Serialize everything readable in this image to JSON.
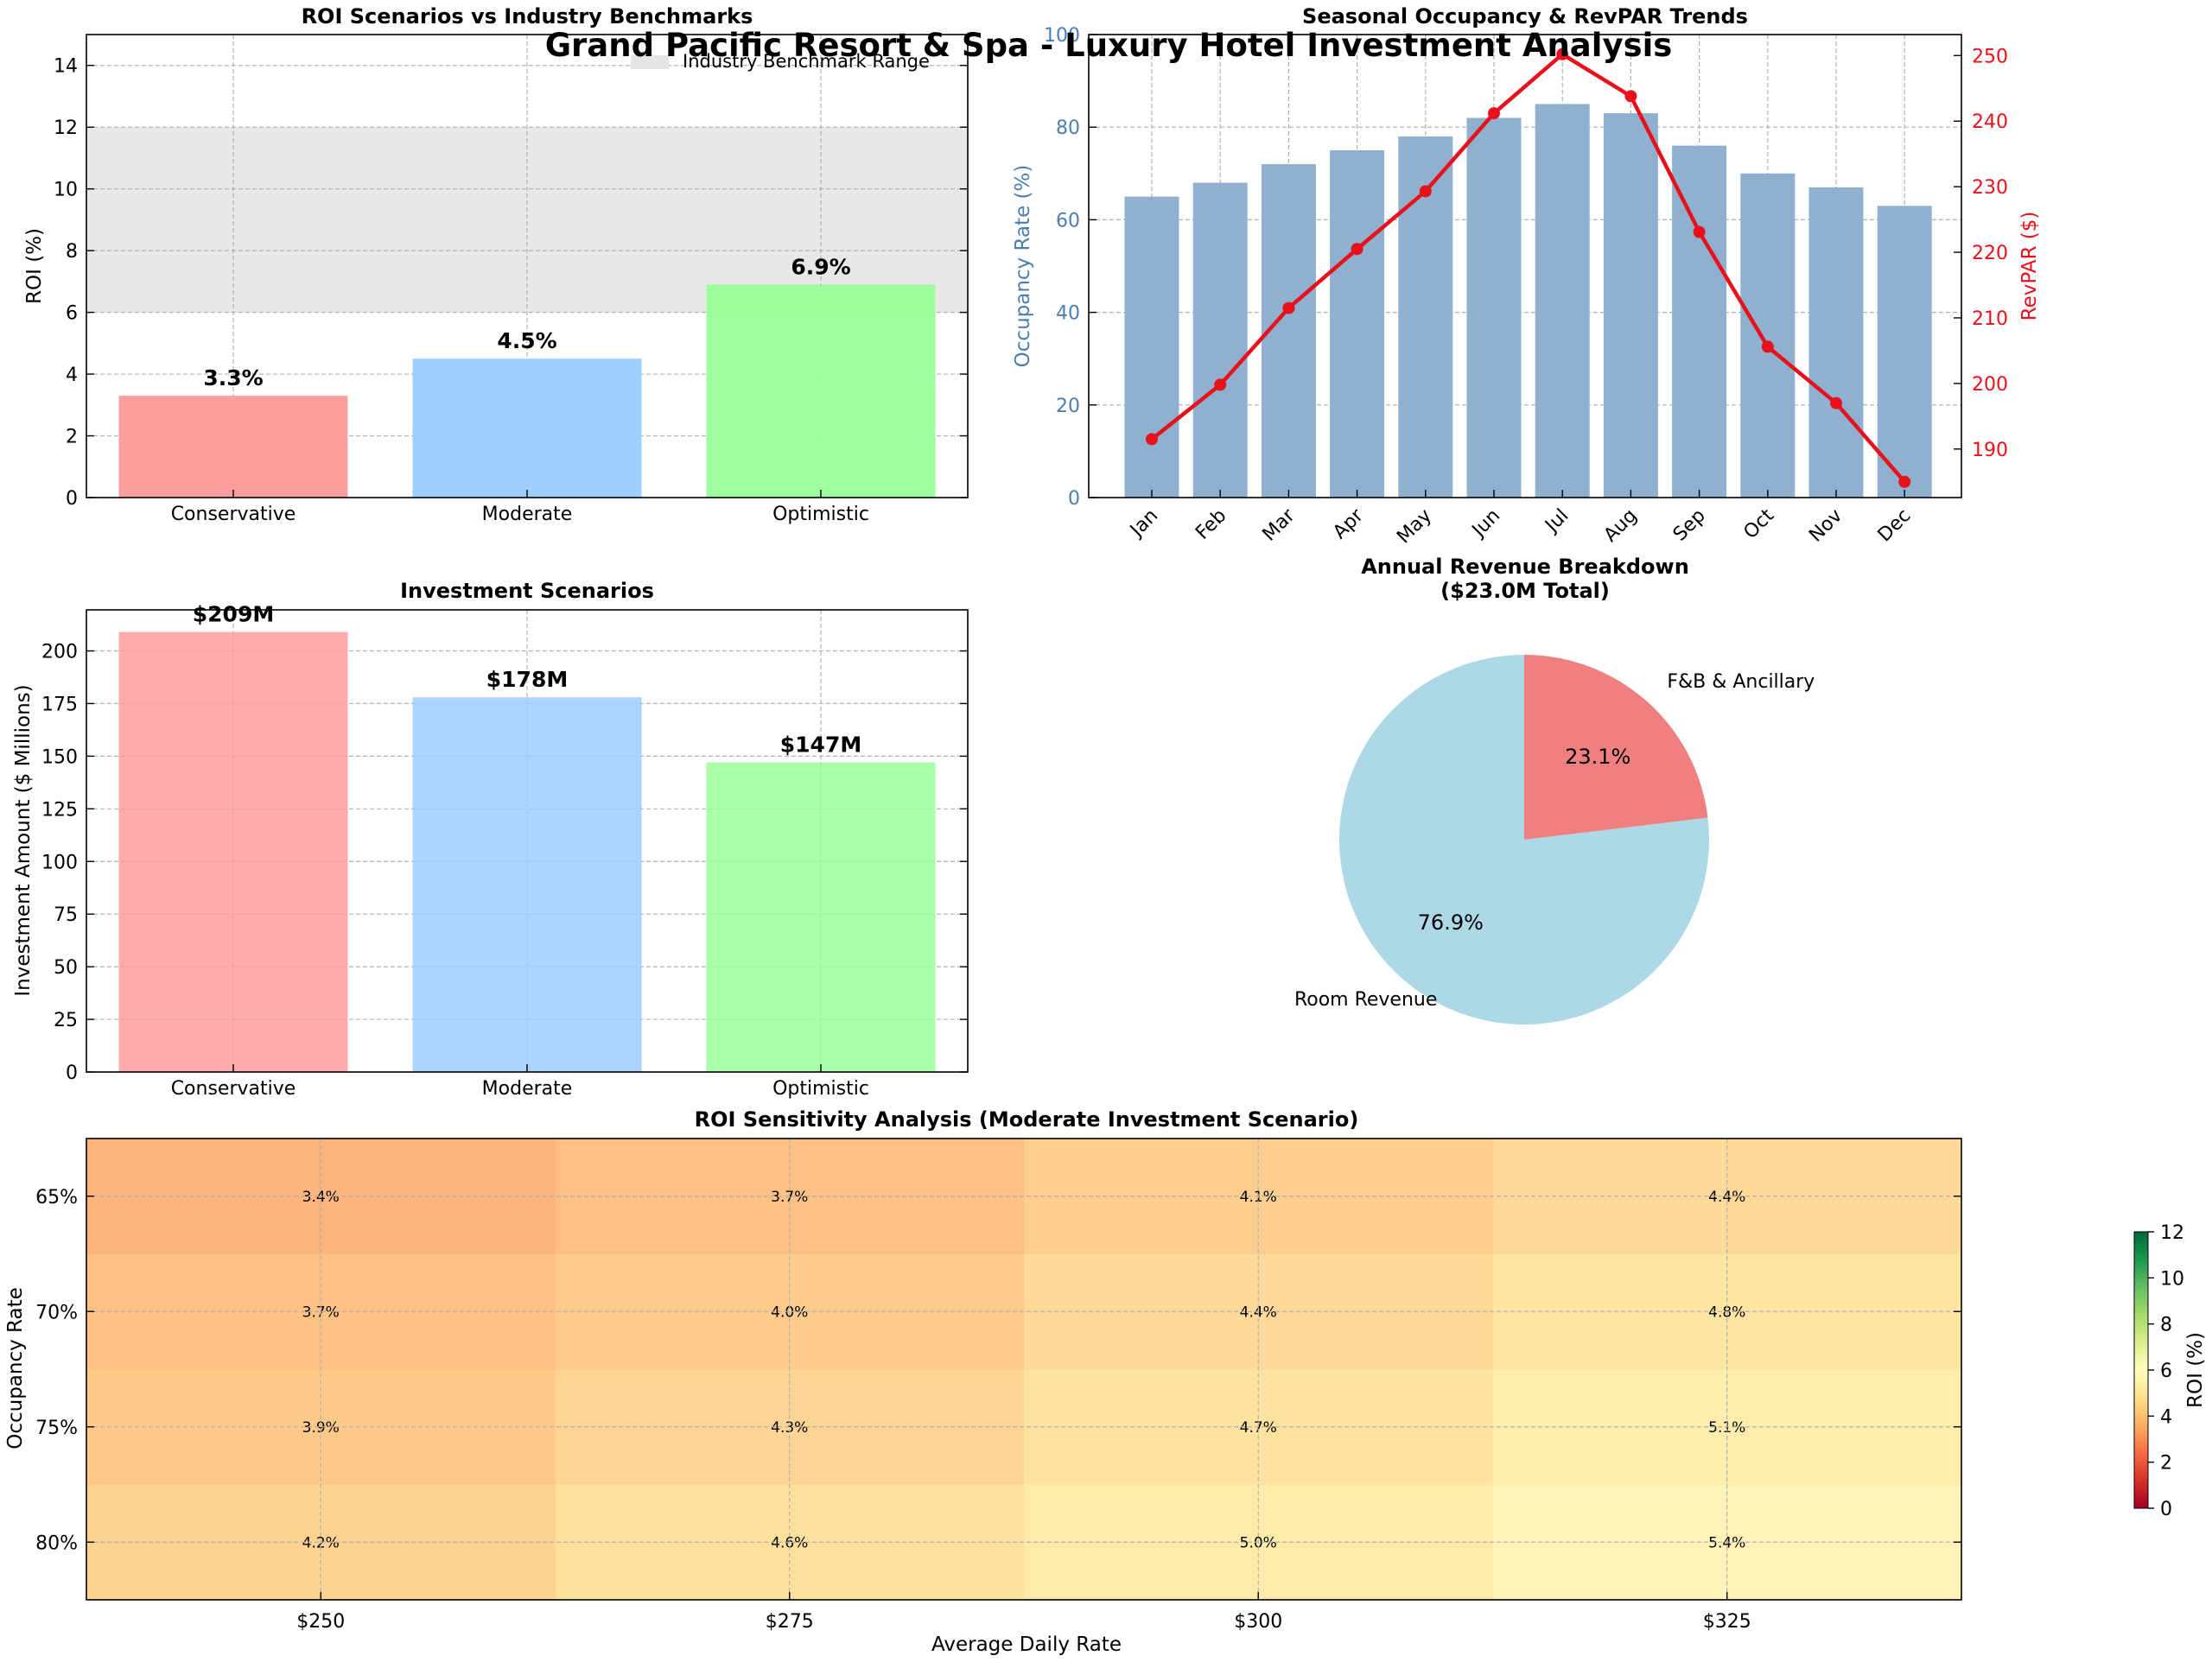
{
  "figure_title": "Grand Pacific Resort & Spa - Luxury Hotel Investment Analysis",
  "colors": {
    "conservative": "#ff9999",
    "moderate": "#99ccff",
    "optimistic": "#99ff99",
    "benchmark_band": "#e5e5e5",
    "occupancy_bar": "#8fb0cf",
    "occupancy_axis": "#4a7fb0",
    "revpar_line": "#e8111b",
    "pie_room": "#add8e6",
    "pie_fnb": "#f08080"
  },
  "chart_data": [
    {
      "id": "roi",
      "type": "bar",
      "title": "ROI Scenarios vs Industry Benchmarks",
      "xlabel": "",
      "ylabel": "ROI (%)",
      "categories": [
        "Conservative",
        "Moderate",
        "Optimistic"
      ],
      "values": [
        3.3,
        4.5,
        6.9
      ],
      "value_labels": [
        "3.3%",
        "4.5%",
        "6.9%"
      ],
      "ylim": [
        0,
        15
      ],
      "yticks": [
        "0",
        "2",
        "4",
        "6",
        "8",
        "10",
        "12",
        "14"
      ],
      "ytick_values": [
        0,
        2,
        4,
        6,
        8,
        10,
        12,
        14
      ],
      "benchmark_range": [
        6,
        12
      ],
      "legend": [
        "Industry Benchmark Range"
      ],
      "legend_position": "top-right",
      "grid": true
    },
    {
      "id": "seasonal",
      "type": "bar+line",
      "title": "Seasonal Occupancy & RevPAR Trends",
      "ylabel": "Occupancy Rate (%)",
      "y2label": "RevPAR ($)",
      "categories": [
        "Jan",
        "Feb",
        "Mar",
        "Apr",
        "May",
        "Jun",
        "Jul",
        "Aug",
        "Sep",
        "Oct",
        "Nov",
        "Dec"
      ],
      "series": [
        {
          "name": "Occupancy Rate (%)",
          "type": "bar",
          "values": [
            65,
            68,
            72,
            75,
            78,
            82,
            85,
            83,
            76,
            70,
            67,
            63
          ]
        },
        {
          "name": "RevPAR ($)",
          "type": "line",
          "values": [
            191.5,
            199.8,
            211.5,
            220.5,
            229.3,
            241.2,
            250.2,
            243.8,
            223.1,
            205.6,
            197.0,
            185.0
          ]
        }
      ],
      "ylim": [
        0,
        100
      ],
      "yticks": [
        "0",
        "20",
        "40",
        "60",
        "80",
        "100"
      ],
      "ytick_values": [
        0,
        20,
        40,
        60,
        80,
        100
      ],
      "y2lim": [
        182.6,
        253.2
      ],
      "y2ticks": [
        "190",
        "200",
        "210",
        "220",
        "230",
        "240",
        "250"
      ],
      "y2tick_values": [
        190,
        200,
        210,
        220,
        230,
        240,
        250
      ],
      "grid": true
    },
    {
      "id": "investment",
      "type": "bar",
      "title": "Investment Scenarios",
      "ylabel": "Investment Amount ($ Millions)",
      "categories": [
        "Conservative",
        "Moderate",
        "Optimistic"
      ],
      "values": [
        209,
        178,
        147
      ],
      "value_labels": [
        "$209M",
        "$178M",
        "$147M"
      ],
      "ylim": [
        0,
        219.5
      ],
      "yticks": [
        "0",
        "25",
        "50",
        "75",
        "100",
        "125",
        "150",
        "175",
        "200"
      ],
      "ytick_values": [
        0,
        25,
        50,
        75,
        100,
        125,
        150,
        175,
        200
      ],
      "grid": true
    },
    {
      "id": "revenue",
      "type": "pie",
      "title_line1": "Annual Revenue Breakdown",
      "title_line2": "($23.0M Total)",
      "labels": [
        "Room Revenue",
        "F&B & Ancillary"
      ],
      "values": [
        76.9,
        23.1
      ],
      "pct_labels": [
        "76.9%",
        "23.1%"
      ]
    },
    {
      "id": "sensitivity",
      "type": "heatmap",
      "title": "ROI Sensitivity Analysis (Moderate Investment Scenario)",
      "xlabel": "Average Daily Rate",
      "ylabel": "Occupancy Rate",
      "x": [
        "$250",
        "$275",
        "$300",
        "$325"
      ],
      "y": [
        "65%",
        "70%",
        "75%",
        "80%"
      ],
      "values": [
        [
          3.4,
          3.7,
          4.1,
          4.4
        ],
        [
          3.7,
          4.0,
          4.4,
          4.8
        ],
        [
          3.9,
          4.3,
          4.7,
          5.1
        ],
        [
          4.2,
          4.6,
          5.0,
          5.4
        ]
      ],
      "cell_labels": [
        [
          "3.4%",
          "3.7%",
          "4.1%",
          "4.4%"
        ],
        [
          "3.7%",
          "4.0%",
          "4.4%",
          "4.8%"
        ],
        [
          "3.9%",
          "4.3%",
          "4.7%",
          "5.1%"
        ],
        [
          "4.2%",
          "4.6%",
          "5.0%",
          "5.4%"
        ]
      ],
      "colorbar_label": "ROI (%)",
      "colorbar_range": [
        0,
        12
      ],
      "colorbar_ticks": [
        "0",
        "2",
        "4",
        "6",
        "8",
        "10",
        "12"
      ],
      "colorbar_tick_values": [
        0,
        2,
        4,
        6,
        8,
        10,
        12
      ],
      "colormap": "RdYlGn"
    }
  ]
}
